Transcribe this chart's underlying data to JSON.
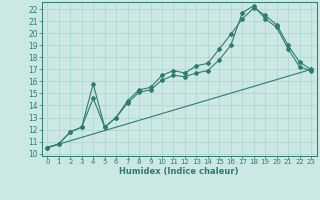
{
  "xlabel": "Humidex (Indice chaleur)",
  "bg_color": "#cce8e4",
  "grid_color": "#b0d8d0",
  "line_color": "#2d7d6b",
  "xlim": [
    -0.5,
    23.5
  ],
  "ylim": [
    9.8,
    22.6
  ],
  "xticks": [
    0,
    1,
    2,
    3,
    4,
    5,
    6,
    7,
    8,
    9,
    10,
    11,
    12,
    13,
    14,
    15,
    16,
    17,
    18,
    19,
    20,
    21,
    22,
    23
  ],
  "yticks": [
    10,
    11,
    12,
    13,
    14,
    15,
    16,
    17,
    18,
    19,
    20,
    21,
    22
  ],
  "line1_x": [
    0,
    1,
    2,
    3,
    4,
    5,
    6,
    7,
    8,
    9,
    10,
    11,
    12,
    13,
    14,
    15,
    16,
    17,
    18,
    19,
    20,
    21,
    22,
    23
  ],
  "line1_y": [
    10.5,
    10.8,
    11.8,
    12.2,
    15.8,
    12.2,
    13.0,
    14.4,
    15.3,
    15.5,
    16.5,
    16.9,
    16.7,
    17.3,
    17.5,
    18.7,
    19.9,
    21.2,
    22.1,
    21.5,
    20.7,
    19.0,
    17.6,
    17.0
  ],
  "line2_x": [
    0,
    1,
    2,
    3,
    4,
    5,
    6,
    7,
    8,
    9,
    10,
    11,
    12,
    13,
    14,
    15,
    16,
    17,
    18,
    19,
    20,
    21,
    22,
    23
  ],
  "line2_y": [
    10.5,
    10.8,
    11.8,
    12.2,
    14.6,
    12.2,
    13.0,
    14.2,
    15.1,
    15.3,
    16.1,
    16.5,
    16.4,
    16.7,
    16.9,
    17.8,
    19.0,
    21.7,
    22.3,
    21.2,
    20.5,
    18.7,
    17.2,
    16.9
  ],
  "line3_x": [
    0,
    23
  ],
  "line3_y": [
    10.5,
    17.0
  ]
}
